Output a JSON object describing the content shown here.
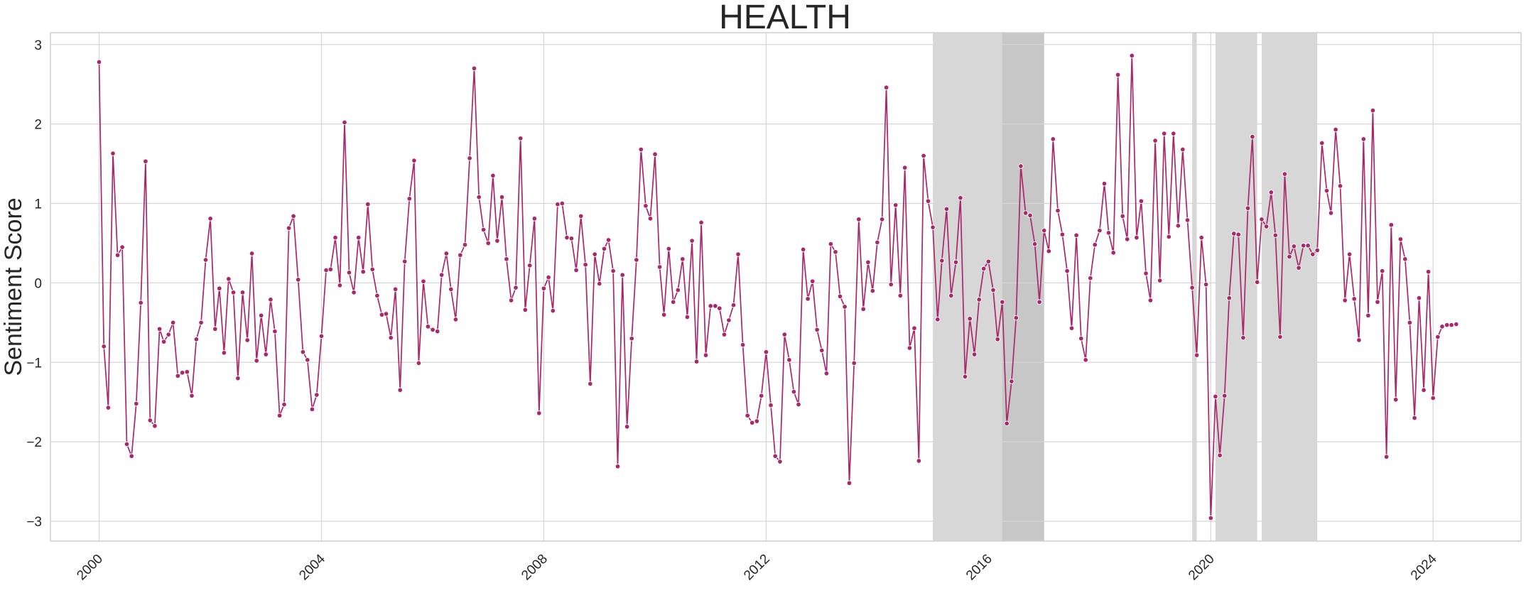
{
  "chart_data": {
    "type": "line",
    "title": "HEALTH",
    "xlabel": "",
    "ylabel": "Sentiment Score",
    "x_range": [
      "1999-02-15",
      "2025-08-01"
    ],
    "ylim": [
      -3.25,
      3.15
    ],
    "grid": true,
    "line_color": "#a8286a",
    "marker_color": "#a8286a",
    "shade_color": "#bdbdbd",
    "x_ticks": [
      "2000",
      "2004",
      "2008",
      "2012",
      "2016",
      "2020",
      "2024"
    ],
    "y_ticks": [
      3,
      2,
      1,
      0,
      -1,
      -2,
      -3
    ],
    "y_tick_labels": [
      "3",
      "2",
      "1",
      "0",
      "−1",
      "−2",
      "−3"
    ],
    "shaded_periods": [
      {
        "start": "2015-01-01",
        "end": "2017-01-01"
      },
      {
        "start": "2016-04-01",
        "end": "2017-01-01"
      },
      {
        "start": "2019-09-01",
        "end": "2019-10-01"
      },
      {
        "start": "2020-02-01",
        "end": "2020-11-01"
      },
      {
        "start": "2020-12-01",
        "end": "2021-12-01"
      }
    ],
    "series": [
      {
        "start": "2000-01",
        "values": [
          2.78,
          -0.8,
          -1.57,
          1.63,
          0.35,
          0.45,
          -2.03,
          -2.18,
          -1.52,
          -0.25,
          1.53,
          -1.73,
          -1.8,
          -0.58,
          -0.74,
          -0.65,
          -0.5,
          -1.17,
          -1.13,
          -1.12,
          -1.42,
          -0.71,
          -0.5,
          0.29,
          0.81,
          -0.58,
          -0.07,
          -0.88,
          0.05,
          -0.12,
          -1.2,
          -0.12,
          -0.72,
          0.37,
          -0.98,
          -0.41,
          -0.9,
          -0.21,
          -0.61,
          -1.67,
          -1.53,
          0.69,
          0.84,
          0.04,
          -0.87,
          -0.97,
          -1.59,
          -1.41,
          -0.67,
          0.16,
          0.17,
          0.57,
          -0.03,
          2.02,
          0.13,
          -0.12,
          0.57,
          0.14,
          0.99,
          0.17,
          -0.16,
          -0.4,
          -0.39,
          -0.69,
          -0.08,
          -1.35,
          0.27,
          1.06,
          1.54,
          -1.01,
          0.02,
          -0.55,
          -0.59,
          -0.61,
          0.1,
          0.37,
          -0.08,
          -0.46,
          0.35,
          0.48,
          1.57,
          2.7,
          1.08,
          0.67,
          0.5,
          1.35,
          0.53,
          1.08,
          0.3,
          -0.22,
          -0.06,
          1.82,
          -0.34,
          0.22,
          0.81,
          -1.64,
          -0.07,
          0.07,
          -0.35,
          0.99,
          1.0,
          0.57,
          0.56,
          0.16,
          0.84,
          0.23,
          -1.27,
          0.36,
          -0.01,
          0.43,
          0.54,
          0.15,
          -2.31,
          0.1,
          -1.81,
          -0.7,
          0.29,
          1.68,
          0.97,
          0.81,
          1.62,
          0.2,
          -0.4,
          0.43,
          -0.24,
          -0.09,
          0.3,
          -0.43,
          0.53,
          -0.99,
          0.76,
          -0.91,
          -0.29,
          -0.29,
          -0.32,
          -0.65,
          -0.47,
          -0.28,
          0.36,
          -0.78,
          -1.67,
          -1.76,
          -1.74,
          -1.42,
          -0.87,
          -1.54,
          -2.18,
          -2.25,
          -0.65,
          -0.97,
          -1.37,
          -1.53,
          0.42,
          -0.2,
          0.02,
          -0.59,
          -0.85,
          -1.14,
          0.49,
          0.39,
          -0.17,
          -0.3,
          -2.52,
          -1.01,
          0.8,
          -0.33,
          0.26,
          -0.1,
          0.51,
          0.8,
          2.46,
          -0.02,
          0.98,
          -0.16,
          1.45,
          -0.82,
          -0.57,
          -2.24,
          1.6,
          1.03,
          0.7,
          -0.46,
          0.28,
          0.93,
          -0.16,
          0.26,
          1.07,
          -1.18,
          -0.45,
          -0.9,
          -0.21,
          0.18,
          0.27,
          -0.09,
          -0.71,
          -0.24,
          -1.77,
          -1.24,
          -0.44,
          1.47,
          0.88,
          0.85,
          0.49,
          -0.24,
          0.66,
          0.4,
          1.81,
          0.91,
          0.61,
          0.15,
          -0.57,
          0.6,
          -0.7,
          -0.97,
          0.06,
          0.48,
          0.66,
          1.25,
          0.63,
          0.38,
          2.62,
          0.84,
          0.55,
          2.86,
          0.57,
          1.03,
          0.12,
          -0.22,
          1.79,
          0.03,
          1.88,
          0.58,
          1.88,
          0.72,
          1.68,
          0.79,
          -0.06,
          -0.91,
          0.57,
          -0.02,
          -2.96,
          -1.43,
          -2.17,
          -1.42,
          -0.19,
          0.62,
          0.61,
          -0.69,
          0.94,
          1.84,
          0.01,
          0.8,
          0.71,
          1.14,
          0.6,
          -0.68,
          1.37,
          0.33,
          0.46,
          0.19,
          0.47,
          0.47,
          0.36,
          0.41,
          1.76,
          1.16,
          0.88,
          1.93,
          1.22,
          -0.22,
          0.36,
          -0.2,
          -0.72,
          1.81,
          -0.41,
          2.17,
          -0.24,
          0.15,
          -2.19,
          0.73,
          -1.47,
          0.55,
          0.3,
          -0.5,
          -1.7,
          -0.19,
          -1.35,
          0.14,
          -1.45,
          -0.68,
          -0.55,
          -0.53,
          -0.53,
          -0.52
        ]
      }
    ]
  }
}
